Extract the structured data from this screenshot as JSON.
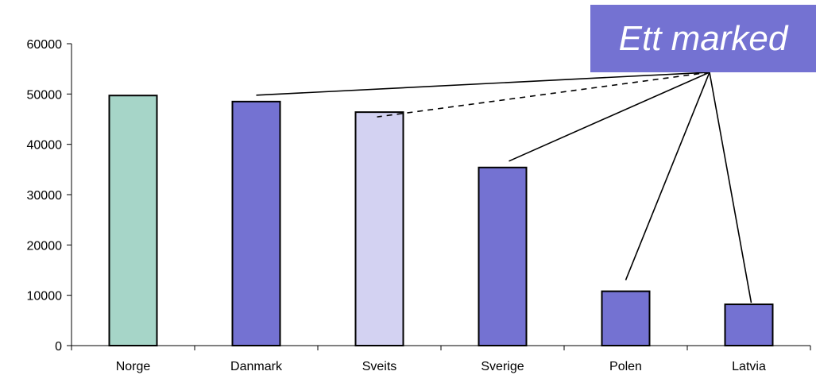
{
  "chart_data": {
    "type": "bar",
    "title": "",
    "xlabel": "",
    "ylabel": "",
    "ylim": [
      0,
      60000
    ],
    "yticks": [
      0,
      10000,
      20000,
      30000,
      40000,
      50000,
      60000
    ],
    "categories": [
      "Norge",
      "Danmark",
      "Sveits",
      "Sverige",
      "Polen",
      "Latvia"
    ],
    "values": [
      49700,
      48500,
      46400,
      35400,
      10800,
      8200
    ],
    "bar_colors": [
      "#a6d5c8",
      "#7472d2",
      "#d3d2f2",
      "#7472d2",
      "#7472d2",
      "#7472d2"
    ],
    "grid": false,
    "annotation": {
      "text": "Ett marked",
      "box_color": "#7472d2",
      "text_color": "#ffffff",
      "connected_categories": [
        "Danmark",
        "Sveits",
        "Sverige",
        "Polen",
        "Latvia"
      ],
      "dashed_categories": [
        "Sveits"
      ]
    }
  }
}
